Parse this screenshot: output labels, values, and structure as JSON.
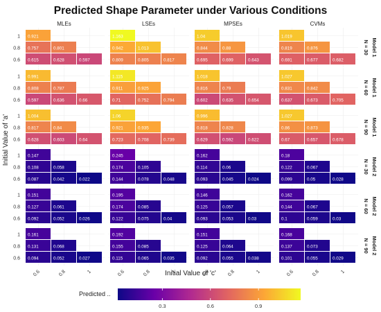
{
  "chart_data": {
    "type": "heatmap",
    "title": "Predicted Shape Parameter under Various Conditions",
    "xlabel": "Initial Value of 'c'",
    "ylabel": "Initial Value of 'a'",
    "x_categories": [
      "0.6",
      "0.8",
      "1"
    ],
    "y_categories": [
      "0.6",
      "0.8",
      "1"
    ],
    "methods": [
      "MLEs",
      "LSEs",
      "MPSEs",
      "CVMs"
    ],
    "rows": [
      {
        "model": "Model 1",
        "n": "N = 30"
      },
      {
        "model": "Model 1",
        "n": "N = 60"
      },
      {
        "model": "Model 1",
        "n": "N = 90"
      },
      {
        "model": "Model 2",
        "n": "N = 30"
      },
      {
        "model": "Model 2",
        "n": "N = 60"
      },
      {
        "model": "Model 2",
        "n": "N = 90"
      }
    ],
    "values": [
      [
        [
          [
            "0.921",
            null,
            null
          ],
          [
            "0.757",
            "0.801",
            null
          ],
          [
            "0.615",
            "0.628",
            "0.597"
          ]
        ],
        [
          [
            "1.163",
            null,
            null
          ],
          [
            "0.942",
            "1.013",
            null
          ],
          [
            "0.809",
            "0.805",
            "0.817"
          ]
        ],
        [
          [
            "1.04",
            null,
            null
          ],
          [
            "0.844",
            "0.88",
            null
          ],
          [
            "0.695",
            "0.699",
            "0.643"
          ]
        ],
        [
          [
            "1.019",
            null,
            null
          ],
          [
            "0.819",
            "0.876",
            null
          ],
          [
            "0.691",
            "0.677",
            "0.682"
          ]
        ]
      ],
      [
        [
          [
            "0.991",
            null,
            null
          ],
          [
            "0.808",
            "0.787",
            null
          ],
          [
            "0.597",
            "0.636",
            "0.66"
          ]
        ],
        [
          [
            "1.115",
            null,
            null
          ],
          [
            "0.911",
            "0.925",
            null
          ],
          [
            "0.71",
            "0.752",
            "0.794"
          ]
        ],
        [
          [
            "1.018",
            null,
            null
          ],
          [
            "0.816",
            "0.79",
            null
          ],
          [
            "0.602",
            "0.635",
            "0.654"
          ]
        ],
        [
          [
            "1.027",
            null,
            null
          ],
          [
            "0.831",
            "0.842",
            null
          ],
          [
            "0.637",
            "0.673",
            "0.705"
          ]
        ]
      ],
      [
        [
          [
            "1.004",
            null,
            null
          ],
          [
            "0.817",
            "0.84",
            null
          ],
          [
            "0.628",
            "0.603",
            "0.64"
          ]
        ],
        [
          [
            "1.06",
            null,
            null
          ],
          [
            "0.921",
            "0.935",
            null
          ],
          [
            "0.723",
            "0.708",
            "0.739"
          ]
        ],
        [
          [
            "0.996",
            null,
            null
          ],
          [
            "0.818",
            "0.828",
            null
          ],
          [
            "0.629",
            "0.592",
            "0.622"
          ]
        ],
        [
          [
            "1.027",
            null,
            null
          ],
          [
            "0.86",
            "0.873",
            null
          ],
          [
            "0.67",
            "0.657",
            "0.678"
          ]
        ]
      ],
      [
        [
          [
            "0.147",
            null,
            null
          ],
          [
            "0.108",
            "0.058",
            null
          ],
          [
            "0.087",
            "0.042",
            "0.022"
          ]
        ],
        [
          [
            "0.245",
            null,
            null
          ],
          [
            "0.174",
            "0.105",
            null
          ],
          [
            "0.144",
            "0.078",
            "0.048"
          ]
        ],
        [
          [
            "0.162",
            null,
            null
          ],
          [
            "0.114",
            "0.06",
            null
          ],
          [
            "0.093",
            "0.045",
            "0.024"
          ]
        ],
        [
          [
            "0.18",
            null,
            null
          ],
          [
            "0.122",
            "0.067",
            null
          ],
          [
            "0.099",
            "0.05",
            "0.028"
          ]
        ]
      ],
      [
        [
          [
            "0.151",
            null,
            null
          ],
          [
            "0.127",
            "0.061",
            null
          ],
          [
            "0.092",
            "0.052",
            "0.026"
          ]
        ],
        [
          [
            "0.195",
            null,
            null
          ],
          [
            "0.174",
            "0.085",
            null
          ],
          [
            "0.122",
            "0.075",
            "0.04"
          ]
        ],
        [
          [
            "0.146",
            null,
            null
          ],
          [
            "0.125",
            "0.057",
            null
          ],
          [
            "0.093",
            "0.053",
            "0.03"
          ]
        ],
        [
          [
            "0.162",
            null,
            null
          ],
          [
            "0.144",
            "0.067",
            null
          ],
          [
            "0.1",
            "0.059",
            "0.03"
          ]
        ]
      ],
      [
        [
          [
            "0.161",
            null,
            null
          ],
          [
            "0.131",
            "0.068",
            null
          ],
          [
            "0.094",
            "0.052",
            "0.027"
          ]
        ],
        [
          [
            "0.192",
            null,
            null
          ],
          [
            "0.155",
            "0.085",
            null
          ],
          [
            "0.115",
            "0.065",
            "0.035"
          ]
        ],
        [
          [
            "0.151",
            null,
            null
          ],
          [
            "0.125",
            "0.064",
            null
          ],
          [
            "0.092",
            "0.055",
            "0.038"
          ]
        ],
        [
          [
            "0.168",
            null,
            null
          ],
          [
            "0.137",
            "0.073",
            null
          ],
          [
            "0.101",
            "0.055",
            "0.029"
          ]
        ]
      ]
    ],
    "legend": {
      "title": "Predicted ..",
      "ticks": [
        "0.3",
        "0.6",
        "0.9"
      ],
      "range": [
        0.022,
        1.163
      ],
      "position": "bottom"
    },
    "colormap": [
      "#0d0887",
      "#6a00a8",
      "#b12a90",
      "#e16462",
      "#fca636",
      "#f0f921"
    ]
  }
}
